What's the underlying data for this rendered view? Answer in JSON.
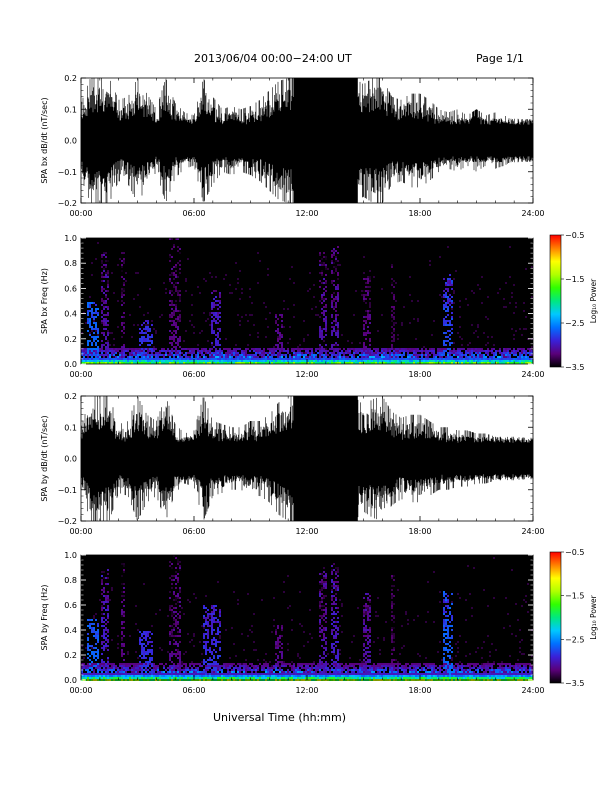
{
  "header": {
    "title": "2013/06/04  00:00−24:00 UT",
    "page": "Page 1/1"
  },
  "footer": {
    "xlabel": "Universal Time (hh:mm)"
  },
  "chart_data": [
    {
      "type": "line",
      "panel": "bx-waveform",
      "ylabel": "SPA bx dB/dt (nT/sec)",
      "ylim": [
        -0.2,
        0.2
      ],
      "yticks": [
        -0.2,
        -0.1,
        0.0,
        0.1,
        0.2
      ],
      "ytick_labels": [
        "−0.2",
        "−0.1",
        "0.0",
        "0.1",
        "0.2"
      ],
      "xticks": [
        "00:00",
        "06:00",
        "12:00",
        "18:00",
        "24:00"
      ],
      "xlim_hours": [
        0,
        24
      ],
      "envelope_hours": [
        0,
        0.5,
        1,
        1.5,
        2,
        2.5,
        3,
        3.5,
        4,
        4.5,
        5,
        5.5,
        6,
        6.5,
        7,
        7.5,
        8,
        8.5,
        9,
        9.5,
        10,
        10.5,
        11,
        11.5,
        12,
        12.5,
        13,
        13.5,
        14,
        14.5,
        15,
        15.5,
        16,
        16.5,
        17,
        17.5,
        18,
        18.5,
        19,
        19.5,
        20,
        20.5,
        21,
        21.5,
        22,
        22.5,
        23,
        23.5,
        24
      ],
      "envelope_amplitude": [
        0.12,
        0.2,
        0.2,
        0.2,
        0.13,
        0.14,
        0.2,
        0.15,
        0.1,
        0.2,
        0.12,
        0.09,
        0.08,
        0.2,
        0.14,
        0.1,
        0.11,
        0.1,
        0.11,
        0.13,
        0.16,
        0.19,
        0.2,
        0.2,
        0.2,
        0.2,
        0.2,
        0.2,
        0.2,
        0.2,
        0.18,
        0.2,
        0.2,
        0.14,
        0.13,
        0.15,
        0.15,
        0.13,
        0.1,
        0.09,
        0.1,
        0.08,
        0.1,
        0.08,
        0.09,
        0.08,
        0.06,
        0.05,
        0.05
      ],
      "solid_block_hours": [
        [
          11.3,
          14.7
        ]
      ]
    },
    {
      "type": "heatmap",
      "panel": "bx-spectrogram",
      "ylabel": "SPA bx Freq (Hz)",
      "ylim": [
        0.0,
        1.0
      ],
      "yticks": [
        0.0,
        0.2,
        0.4,
        0.6,
        0.8,
        1.0
      ],
      "ytick_labels": [
        "0.0",
        "0.2",
        "0.4",
        "0.6",
        "0.8",
        "1.0"
      ],
      "xticks": [
        "00:00",
        "06:00",
        "12:00",
        "18:00",
        "24:00"
      ],
      "xlim_hours": [
        0,
        24
      ],
      "colorbar": {
        "label": "Log₁₀ Power",
        "range": [
          -3.5,
          -0.5
        ],
        "ticks": [
          "−0.5",
          "−1.5",
          "−2.5",
          "−3.5"
        ],
        "colors": [
          "#000000",
          "#5a007a",
          "#3a20d8",
          "#0070ff",
          "#00c8ff",
          "#00e880",
          "#30ff00",
          "#b0ff00",
          "#ffff00",
          "#ff8000",
          "#ff0000"
        ]
      },
      "features": [
        {
          "hours": [
            0.3,
            0.9
          ],
          "freq_max": 0.5,
          "level": -2.6
        },
        {
          "hours": [
            1.0,
            1.4
          ],
          "freq_max": 0.9,
          "level": -3.0
        },
        {
          "hours": [
            2.1,
            2.3
          ],
          "freq_max": 0.95,
          "level": -3.1
        },
        {
          "hours": [
            3.0,
            3.8
          ],
          "freq_max": 0.35,
          "level": -2.8
        },
        {
          "hours": [
            4.6,
            5.3
          ],
          "freq_max": 1.0,
          "level": -3.1
        },
        {
          "hours": [
            6.8,
            7.4
          ],
          "freq_max": 0.6,
          "level": -2.9
        },
        {
          "hours": [
            10.3,
            10.7
          ],
          "freq_max": 0.4,
          "level": -3.1
        },
        {
          "hours": [
            12.6,
            13.0
          ],
          "freq_max": 0.9,
          "level": -3.0
        },
        {
          "hours": [
            13.2,
            13.6
          ],
          "freq_max": 0.95,
          "level": -3.0
        },
        {
          "hours": [
            14.9,
            15.3
          ],
          "freq_max": 0.7,
          "level": -3.1
        },
        {
          "hours": [
            16.4,
            16.6
          ],
          "freq_max": 0.85,
          "level": -3.2
        },
        {
          "hours": [
            19.2,
            19.7
          ],
          "freq_max": 0.72,
          "level": -2.7
        }
      ],
      "low_freq_band": {
        "freq_max": 0.06,
        "level_peak": -0.8
      }
    },
    {
      "type": "line",
      "panel": "by-waveform",
      "ylabel": "SPA by dB/dt (nT/sec)",
      "ylim": [
        -0.2,
        0.2
      ],
      "yticks": [
        -0.2,
        -0.1,
        0.0,
        0.1,
        0.2
      ],
      "ytick_labels": [
        "−0.2",
        "−0.1",
        "0.0",
        "0.1",
        "0.2"
      ],
      "xticks": [
        "00:00",
        "06:00",
        "12:00",
        "18:00",
        "24:00"
      ],
      "xlim_hours": [
        0,
        24
      ],
      "envelope_hours": [
        0,
        0.5,
        1,
        1.5,
        2,
        2.5,
        3,
        3.5,
        4,
        4.5,
        5,
        5.5,
        6,
        6.5,
        7,
        7.5,
        8,
        8.5,
        9,
        9.5,
        10,
        10.5,
        11,
        11.5,
        12,
        12.5,
        13,
        13.5,
        14,
        14.5,
        15,
        15.5,
        16,
        16.5,
        17,
        17.5,
        18,
        18.5,
        19,
        19.5,
        20,
        20.5,
        21,
        21.5,
        22,
        22.5,
        23,
        23.5,
        24
      ],
      "envelope_amplitude": [
        0.1,
        0.2,
        0.2,
        0.2,
        0.11,
        0.12,
        0.2,
        0.14,
        0.12,
        0.2,
        0.11,
        0.08,
        0.09,
        0.2,
        0.12,
        0.11,
        0.1,
        0.1,
        0.12,
        0.12,
        0.14,
        0.18,
        0.2,
        0.2,
        0.2,
        0.2,
        0.2,
        0.2,
        0.2,
        0.2,
        0.17,
        0.19,
        0.2,
        0.15,
        0.13,
        0.14,
        0.14,
        0.12,
        0.1,
        0.1,
        0.09,
        0.09,
        0.08,
        0.08,
        0.07,
        0.06,
        0.06,
        0.05,
        0.05
      ],
      "solid_block_hours": [
        [
          11.3,
          14.7
        ]
      ]
    },
    {
      "type": "heatmap",
      "panel": "by-spectrogram",
      "ylabel": "SPA by Freq (Hz)",
      "ylim": [
        0.0,
        1.0
      ],
      "yticks": [
        0.0,
        0.2,
        0.4,
        0.6,
        0.8,
        1.0
      ],
      "ytick_labels": [
        "0.0",
        "0.2",
        "0.4",
        "0.6",
        "0.8",
        "1.0"
      ],
      "xticks": [
        "00:00",
        "06:00",
        "12:00",
        "18:00",
        "24:00"
      ],
      "xlim_hours": [
        0,
        24
      ],
      "colorbar": {
        "label": "Log₁₀ Power",
        "range": [
          -3.5,
          -0.5
        ],
        "ticks": [
          "−0.5",
          "−1.5",
          "−2.5",
          "−3.5"
        ],
        "colors": [
          "#000000",
          "#5a007a",
          "#3a20d8",
          "#0070ff",
          "#00c8ff",
          "#00e880",
          "#30ff00",
          "#b0ff00",
          "#ffff00",
          "#ff8000",
          "#ff0000"
        ]
      },
      "features": [
        {
          "hours": [
            0.3,
            0.9
          ],
          "freq_max": 0.5,
          "level": -2.6
        },
        {
          "hours": [
            1.0,
            1.4
          ],
          "freq_max": 0.9,
          "level": -2.9
        },
        {
          "hours": [
            2.1,
            2.3
          ],
          "freq_max": 0.95,
          "level": -3.1
        },
        {
          "hours": [
            3.0,
            3.8
          ],
          "freq_max": 0.4,
          "level": -2.8
        },
        {
          "hours": [
            4.6,
            5.3
          ],
          "freq_max": 1.0,
          "level": -3.1
        },
        {
          "hours": [
            6.4,
            7.4
          ],
          "freq_max": 0.6,
          "level": -2.8
        },
        {
          "hours": [
            10.3,
            10.7
          ],
          "freq_max": 0.45,
          "level": -3.1
        },
        {
          "hours": [
            12.6,
            13.0
          ],
          "freq_max": 0.9,
          "level": -3.0
        },
        {
          "hours": [
            13.2,
            13.6
          ],
          "freq_max": 0.95,
          "level": -2.9
        },
        {
          "hours": [
            14.9,
            15.3
          ],
          "freq_max": 0.7,
          "level": -3.0
        },
        {
          "hours": [
            16.4,
            16.6
          ],
          "freq_max": 0.85,
          "level": -3.2
        },
        {
          "hours": [
            19.2,
            19.7
          ],
          "freq_max": 0.72,
          "level": -2.6
        }
      ],
      "low_freq_band": {
        "freq_max": 0.06,
        "level_peak": -0.8
      }
    }
  ]
}
